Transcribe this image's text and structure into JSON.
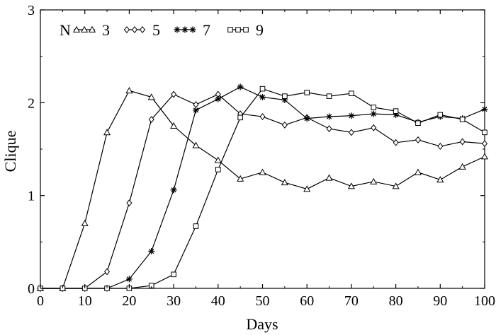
{
  "chart_data": {
    "type": "line",
    "xlabel": "Days",
    "ylabel": "Clique",
    "xlim": [
      0,
      100
    ],
    "ylim": [
      0,
      3
    ],
    "xticks": [
      "0",
      "10",
      "20",
      "30",
      "40",
      "50",
      "60",
      "70",
      "80",
      "90",
      "100"
    ],
    "yticks": [
      "0",
      "1",
      "2",
      "3"
    ],
    "grid": false,
    "legend_position": "top-left",
    "legend_title": "N",
    "x": [
      0,
      5,
      10,
      15,
      20,
      25,
      30,
      35,
      40,
      45,
      50,
      55,
      60,
      65,
      70,
      75,
      80,
      85,
      90,
      95,
      100
    ],
    "series": [
      {
        "name": "3",
        "marker": "triangle",
        "values": [
          0,
          0,
          0.7,
          1.68,
          2.13,
          2.06,
          1.75,
          1.54,
          1.38,
          1.18,
          1.25,
          1.14,
          1.07,
          1.19,
          1.1,
          1.15,
          1.1,
          1.25,
          1.17,
          1.31,
          1.42
        ]
      },
      {
        "name": "5",
        "marker": "diamond",
        "values": [
          0,
          0,
          0,
          0.18,
          0.92,
          1.82,
          2.09,
          1.98,
          2.09,
          1.88,
          1.85,
          1.76,
          1.84,
          1.72,
          1.68,
          1.73,
          1.57,
          1.6,
          1.53,
          1.58,
          1.56
        ]
      },
      {
        "name": "7",
        "marker": "asterisk",
        "values": [
          0,
          0,
          0,
          0,
          0.1,
          0.4,
          1.06,
          1.92,
          2.04,
          2.17,
          2.06,
          2.03,
          1.83,
          1.85,
          1.86,
          1.88,
          1.87,
          1.79,
          1.85,
          1.83,
          1.93
        ]
      },
      {
        "name": "9",
        "marker": "square",
        "values": [
          0,
          0,
          0,
          0,
          0,
          0.03,
          0.15,
          0.67,
          1.28,
          1.84,
          2.15,
          2.07,
          2.11,
          2.07,
          2.1,
          1.95,
          1.91,
          1.78,
          1.87,
          1.82,
          1.68
        ]
      }
    ]
  }
}
